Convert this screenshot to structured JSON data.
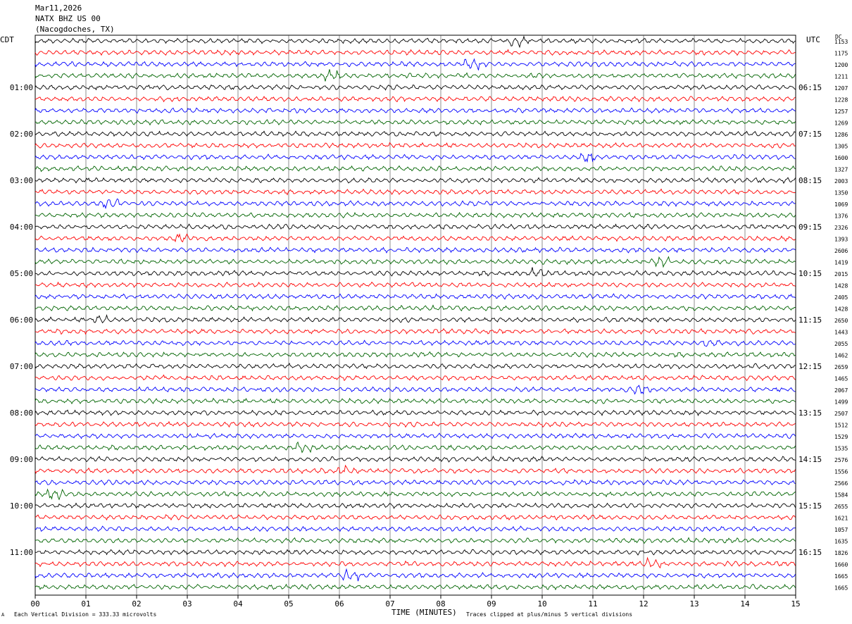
{
  "header": {
    "date": "Mar11,2026",
    "station": "NATX BHZ US 00",
    "location": "(Nacogdoches, TX)"
  },
  "left_zone_label": "CDT",
  "right_zone_label": "UTC",
  "dc_label": "DC",
  "footer": {
    "division_note": "Each Vertical Division =  333.33 microvolts",
    "clip_note": "Traces clipped at plus/minus 5 vertical divisions",
    "corner_mark": "A"
  },
  "colors": {
    "trace_cycle": [
      "#000000",
      "#ff0000",
      "#0000ff",
      "#006400"
    ],
    "grid": "#000000",
    "background": "#ffffff"
  },
  "chart_data": {
    "type": "line",
    "xlabel": "TIME (MINUTES)",
    "xlim": [
      0,
      15
    ],
    "x_ticks": [
      "00",
      "01",
      "02",
      "03",
      "04",
      "05",
      "06",
      "07",
      "08",
      "09",
      "10",
      "11",
      "12",
      "13",
      "14",
      "15"
    ],
    "trace_count": 48,
    "left_hour_labels": [
      "01:00",
      "02:00",
      "03:00",
      "04:00",
      "05:00",
      "06:00",
      "07:00",
      "08:00",
      "09:00",
      "10:00",
      "11:00"
    ],
    "right_hour_labels": [
      "06:15",
      "07:15",
      "08:15",
      "09:15",
      "10:15",
      "11:15",
      "12:15",
      "13:15",
      "14:15",
      "15:15",
      "16:15"
    ],
    "dc_values": [
      "1153",
      "1175",
      "1200",
      "1211",
      "1207",
      "1228",
      "1257",
      "1269",
      "1286",
      "1305",
      "1600",
      "1327",
      "2003",
      "1350",
      "1069",
      "1376",
      "2326",
      "1393",
      "2606",
      "1419",
      "2015",
      "1428",
      "2405",
      "1428",
      "2650",
      "1443",
      "2055",
      "1462",
      "2659",
      "1465",
      "2067",
      "1499",
      "2507",
      "1512",
      "1529",
      "1535",
      "2576",
      "1556",
      "2566",
      "1584",
      "2655",
      "1621",
      "1057",
      "1635",
      "1826",
      "1660",
      "1665",
      "1665"
    ]
  }
}
